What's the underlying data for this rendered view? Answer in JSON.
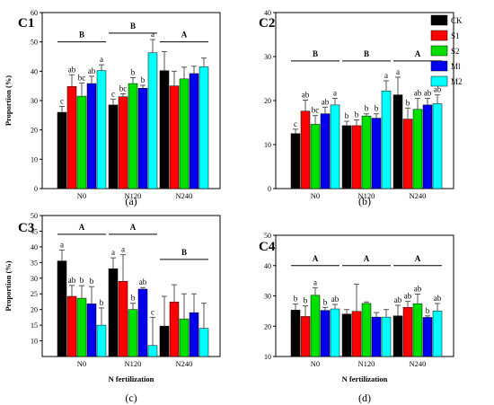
{
  "colors": {
    "CK": "#000000",
    "S1": "#ff0000",
    "S2": "#00e000",
    "M1": "#0000ee",
    "M2": "#00ffff"
  },
  "legend": [
    "CK",
    "S1",
    "S2",
    "Ml",
    "M2"
  ],
  "chart_data": [
    {
      "type": "bar",
      "id": "C1",
      "title": "C1",
      "sublabel": "(a)",
      "ylabel": "Proportion (%)",
      "xlabel": "",
      "ylim": [
        0,
        60
      ],
      "yticks": [
        0,
        10,
        20,
        30,
        40,
        50,
        60
      ],
      "categories": [
        "N0",
        "N120",
        "N240"
      ],
      "series": [
        {
          "name": "CK",
          "values": [
            26,
            28.5,
            40.2
          ],
          "err": [
            2,
            2,
            6.5
          ]
        },
        {
          "name": "S1",
          "values": [
            34.8,
            31.3,
            35
          ],
          "err": [
            4,
            1,
            5
          ]
        },
        {
          "name": "S2",
          "values": [
            31.5,
            35.8,
            37.4
          ],
          "err": [
            4.5,
            2,
            4
          ]
        },
        {
          "name": "Ml",
          "values": [
            35.8,
            34.2,
            39.2
          ],
          "err": [
            2.5,
            1,
            2.5
          ]
        },
        {
          "name": "M2",
          "values": [
            40.2,
            46.3,
            41.5
          ],
          "err": [
            2,
            4.5,
            3
          ]
        }
      ],
      "letters": [
        [
          "c",
          "ab",
          "bc",
          "ab",
          "a"
        ],
        [
          "c",
          "bc",
          "b",
          "b",
          "a"
        ],
        [
          "",
          "",
          "",
          "",
          ""
        ]
      ],
      "group_letters": [
        "B",
        "B",
        "A"
      ],
      "group_line_y": [
        50,
        53,
        50
      ]
    },
    {
      "type": "bar",
      "id": "C2",
      "title": "C2",
      "sublabel": "(b)",
      "ylabel": "",
      "xlabel": "",
      "ylim": [
        0,
        40
      ],
      "yticks": [
        0,
        10,
        20,
        30,
        40
      ],
      "categories": [
        "N0",
        "N120",
        "N240"
      ],
      "series": [
        {
          "name": "CK",
          "values": [
            12.5,
            14.3,
            21.3
          ],
          "err": [
            1,
            1,
            4
          ]
        },
        {
          "name": "S1",
          "values": [
            17.6,
            14.3,
            15.8
          ],
          "err": [
            2.5,
            1.3,
            2.5
          ]
        },
        {
          "name": "S2",
          "values": [
            14.6,
            16.5,
            18
          ],
          "err": [
            2,
            0.5,
            2.5
          ]
        },
        {
          "name": "Ml",
          "values": [
            17,
            16,
            19
          ],
          "err": [
            1.5,
            1,
            1.5
          ]
        },
        {
          "name": "M2",
          "values": [
            19,
            22.2,
            19.3
          ],
          "err": [
            1.5,
            2.3,
            2
          ]
        }
      ],
      "letters": [
        [
          "c",
          "ab",
          "bc",
          "ab",
          "a"
        ],
        [
          "b",
          "b",
          "b",
          "b",
          "a"
        ],
        [
          "a",
          "b",
          "ab",
          "ab",
          "ab"
        ]
      ],
      "group_letters": [
        "B",
        "B",
        "A"
      ],
      "group_line_y": [
        29,
        29,
        29
      ]
    },
    {
      "type": "bar",
      "id": "C3",
      "title": "C3",
      "sublabel": "(c)",
      "ylabel": "Proportion (%)",
      "xlabel": "N fertilization",
      "ylim": [
        5,
        50
      ],
      "yticks": [
        10,
        15,
        20,
        25,
        30,
        35,
        40,
        45,
        50
      ],
      "categories": [
        "N0",
        "N120",
        "N240"
      ],
      "series": [
        {
          "name": "CK",
          "values": [
            35.5,
            33,
            14.7
          ],
          "err": [
            3.5,
            3.5,
            9.5
          ]
        },
        {
          "name": "S1",
          "values": [
            24.2,
            29,
            22.4
          ],
          "err": [
            3.5,
            8.5,
            5.5
          ]
        },
        {
          "name": "S2",
          "values": [
            23.6,
            20,
            17
          ],
          "err": [
            4,
            2,
            8
          ]
        },
        {
          "name": "Ml",
          "values": [
            21.8,
            26.5,
            19
          ],
          "err": [
            5.5,
            0.5,
            6
          ]
        },
        {
          "name": "M2",
          "values": [
            15,
            8.5,
            14
          ],
          "err": [
            5.5,
            9,
            8
          ]
        }
      ],
      "letters": [
        [
          "a",
          "ab",
          "b",
          "b",
          "b"
        ],
        [
          "a",
          "a",
          "b",
          "ab",
          "c"
        ],
        [
          "",
          "",
          "",
          "",
          ""
        ]
      ],
      "group_letters": [
        "A",
        "A",
        "B"
      ],
      "group_line_y": [
        44,
        44,
        36
      ]
    },
    {
      "type": "bar",
      "id": "C4",
      "title": "C4",
      "sublabel": "(d)",
      "ylabel": "",
      "xlabel": "N fertilization",
      "ylim": [
        10,
        50
      ],
      "yticks": [
        10,
        20,
        30,
        40,
        50
      ],
      "categories": [
        "N0",
        "N120",
        "N240"
      ],
      "series": [
        {
          "name": "CK",
          "values": [
            25.3,
            24,
            23.4
          ],
          "err": [
            2,
            1.5,
            3.5
          ]
        },
        {
          "name": "S1",
          "values": [
            23.2,
            24.9,
            26.2
          ],
          "err": [
            3.5,
            9,
            2
          ]
        },
        {
          "name": "S2",
          "values": [
            30.2,
            27.5,
            27.4
          ],
          "err": [
            2.5,
            0.5,
            3.2
          ]
        },
        {
          "name": "Ml",
          "values": [
            25.2,
            23,
            22.9
          ],
          "err": [
            1,
            1.5,
            0.5
          ]
        },
        {
          "name": "M2",
          "values": [
            25.7,
            23,
            25
          ],
          "err": [
            1.5,
            2.5,
            2.5
          ]
        }
      ],
      "letters": [
        [
          "b",
          "b",
          "a",
          "b",
          "ab"
        ],
        [
          "",
          "",
          "",
          "",
          ""
        ],
        [
          "ab",
          "ab",
          "ab",
          "b",
          "ab"
        ]
      ],
      "group_letters": [
        "A",
        "A",
        "A"
      ],
      "group_line_y": [
        40,
        40,
        40
      ]
    }
  ]
}
